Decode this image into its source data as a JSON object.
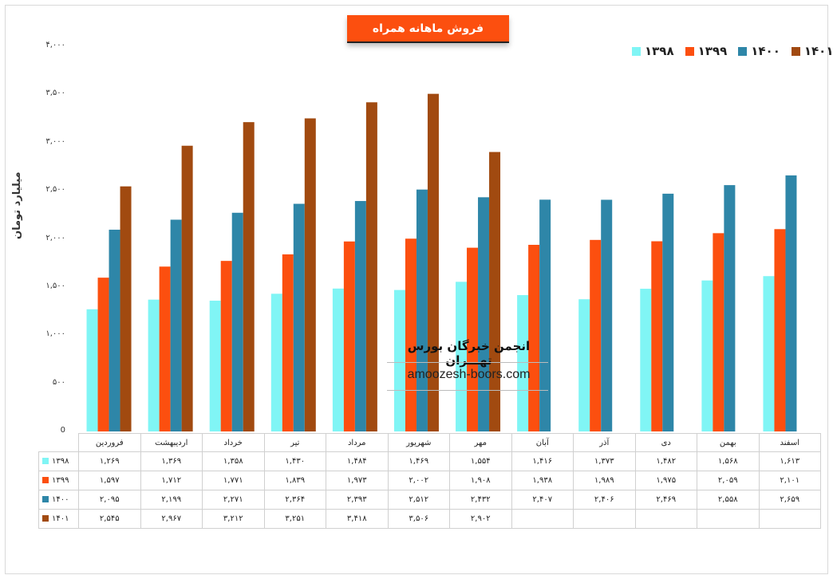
{
  "chart_data": {
    "type": "bar",
    "title": "فروش ماهانه همراه",
    "ylabel": "میلیارد تومان",
    "ylim": [
      0,
      4000
    ],
    "yticks": [
      "0",
      "۵۰۰",
      "۱,۰۰۰",
      "۱,۵۰۰",
      "۲,۰۰۰",
      "۲,۵۰۰",
      "۳,۰۰۰",
      "۳,۵۰۰",
      "۴,۰۰۰"
    ],
    "grid": false,
    "legend_position": "top-right",
    "categories": [
      "فروردین",
      "اردیبهشت",
      "خرداد",
      "تیر",
      "مرداد",
      "شهریور",
      "مهر",
      "آبان",
      "آذر",
      "دی",
      "بهمن",
      "اسفند"
    ],
    "series": [
      {
        "name": "۱۳۹۸",
        "color": "#80f5f5",
        "values": [
          1269,
          1369,
          1358,
          1430,
          1484,
          1469,
          1554,
          1416,
          1373,
          1482,
          1568,
          1613
        ],
        "labels": [
          "۱,۲۶۹",
          "۱,۳۶۹",
          "۱,۳۵۸",
          "۱,۴۳۰",
          "۱,۴۸۴",
          "۱,۴۶۹",
          "۱,۵۵۴",
          "۱,۴۱۶",
          "۱,۳۷۳",
          "۱,۴۸۲",
          "۱,۵۶۸",
          "۱,۶۱۳"
        ]
      },
      {
        "name": "۱۳۹۹",
        "color": "#fc4f0f",
        "values": [
          1597,
          1712,
          1771,
          1839,
          1973,
          2002,
          1908,
          1938,
          1989,
          1975,
          2059,
          2101
        ],
        "labels": [
          "۱,۵۹۷",
          "۱,۷۱۲",
          "۱,۷۷۱",
          "۱,۸۳۹",
          "۱,۹۷۳",
          "۲,۰۰۲",
          "۱,۹۰۸",
          "۱,۹۳۸",
          "۱,۹۸۹",
          "۱,۹۷۵",
          "۲,۰۵۹",
          "۲,۱۰۱"
        ]
      },
      {
        "name": "۱۴۰۰",
        "color": "#2e86a8",
        "values": [
          2095,
          2199,
          2271,
          2364,
          2393,
          2512,
          2432,
          2407,
          2406,
          2469,
          2558,
          2659
        ],
        "labels": [
          "۲,۰۹۵",
          "۲,۱۹۹",
          "۲,۲۷۱",
          "۲,۳۶۴",
          "۲,۳۹۳",
          "۲,۵۱۲",
          "۲,۴۳۲",
          "۲,۴۰۷",
          "۲,۴۰۶",
          "۲,۴۶۹",
          "۲,۵۵۸",
          "۲,۶۵۹"
        ]
      },
      {
        "name": "۱۴۰۱",
        "color": "#a14a10",
        "values": [
          2545,
          2967,
          3212,
          3251,
          3418,
          3506,
          2902,
          null,
          null,
          null,
          null,
          null
        ],
        "labels": [
          "۲,۵۴۵",
          "۲,۹۶۷",
          "۳,۲۱۲",
          "۳,۲۵۱",
          "۳,۴۱۸",
          "۳,۵۰۶",
          "۲,۹۰۲",
          "",
          "",
          "",
          "",
          ""
        ]
      }
    ]
  },
  "watermark": {
    "title": "انجمن خبرگان بورس تهـــران",
    "url": "amoozesh-boors.com"
  }
}
